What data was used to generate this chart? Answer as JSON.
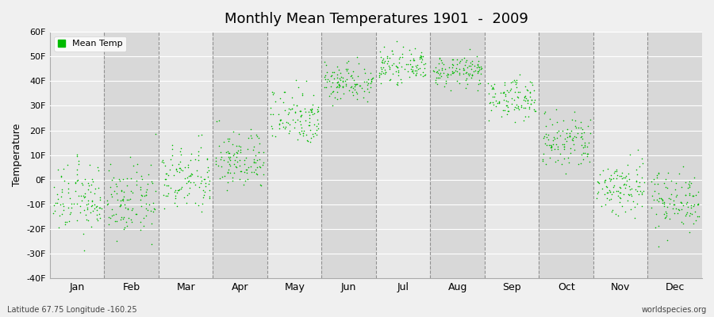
{
  "title": "Monthly Mean Temperatures 1901  -  2009",
  "ylabel": "Temperature",
  "xlabel_bottom_left": "Latitude 67.75 Longitude -160.25",
  "xlabel_bottom_right": "worldspecies.org",
  "legend_label": "Mean Temp",
  "dot_color": "#00bb00",
  "background_color": "#f0f0f0",
  "plot_bg_color": "#f0f0f0",
  "band_color_light": "#e8e8e8",
  "band_color_dark": "#d8d8d8",
  "yticks": [
    -40,
    -30,
    -20,
    -10,
    0,
    10,
    20,
    30,
    40,
    50,
    60
  ],
  "ytick_labels": [
    "-40F",
    "-30F",
    "-20F",
    "-10F",
    "0F",
    "10F",
    "20F",
    "30F",
    "40F",
    "50F",
    "60F"
  ],
  "months": [
    "Jan",
    "Feb",
    "Mar",
    "Apr",
    "May",
    "Jun",
    "Jul",
    "Aug",
    "Sep",
    "Oct",
    "Nov",
    "Dec"
  ],
  "ylim": [
    -40,
    60
  ],
  "monthly_means": [
    -8,
    -9,
    0,
    8,
    26,
    40,
    46,
    44,
    33,
    15,
    -3,
    -8
  ],
  "monthly_stds": [
    7,
    7,
    7,
    6,
    6,
    4,
    3,
    3,
    4,
    6,
    6,
    6
  ],
  "n_years": 109
}
